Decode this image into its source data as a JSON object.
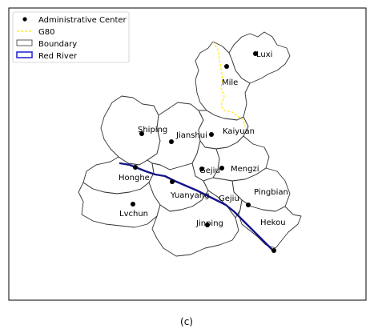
{
  "legend": {
    "items": [
      {
        "label": "Administrative Center",
        "symbol": "point",
        "color": "#000000"
      },
      {
        "label": "G80",
        "symbol": "dashed-line",
        "color": "#ffeb00"
      },
      {
        "label": "Boundary",
        "symbol": "rectangle",
        "color": "#333333"
      },
      {
        "label": "Red River",
        "symbol": "rectangle-thick",
        "color": "#2b2bd6"
      }
    ]
  },
  "cities": [
    {
      "name": "Luxi"
    },
    {
      "name": "Mile"
    },
    {
      "name": "Shiping"
    },
    {
      "name": "Jianshui"
    },
    {
      "name": "Kaiyuan"
    },
    {
      "name": "Gejiu"
    },
    {
      "name": "Mengzi"
    },
    {
      "name": "Honghe"
    },
    {
      "name": "Yuanyang"
    },
    {
      "name": "Gejiu"
    },
    {
      "name": "Pingbian"
    },
    {
      "name": "Lvchun"
    },
    {
      "name": "Jinping"
    },
    {
      "name": "Hekou"
    }
  ],
  "caption": "(c)",
  "colors": {
    "river": "#14148c",
    "road": "#ffeb00",
    "boundary": "#333333",
    "point": "#000000"
  }
}
